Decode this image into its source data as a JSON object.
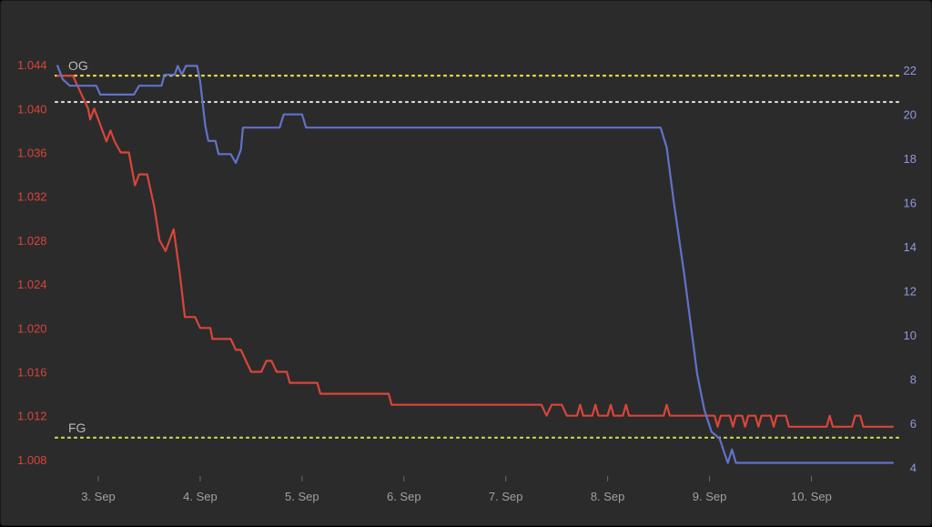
{
  "chart_data": {
    "type": "line",
    "title": "",
    "x_axis": {
      "ticks": [
        "3. Sep",
        "4. Sep",
        "5. Sep",
        "6. Sep",
        "7. Sep",
        "8. Sep",
        "9. Sep",
        "10. Sep"
      ],
      "range_days": [
        2.58,
        10.8
      ]
    },
    "y_left": {
      "ticks": [
        "1.008",
        "1.012",
        "1.016",
        "1.020",
        "1.024",
        "1.028",
        "1.032",
        "1.036",
        "1.040",
        "1.044"
      ],
      "range": [
        1.0065,
        1.0455
      ],
      "color": "#d9453a"
    },
    "y_right": {
      "ticks": [
        "4",
        "6",
        "8",
        "10",
        "12",
        "14",
        "16",
        "18",
        "20",
        "22"
      ],
      "range": [
        3.6,
        23
      ],
      "color": "#6272c9"
    },
    "reference_lines": [
      {
        "label": "OG",
        "value": 1.043,
        "color": "#e8d44d"
      },
      {
        "label": "",
        "value": 1.0406,
        "color": "#d8d8d8"
      },
      {
        "label": "FG",
        "value": 1.01,
        "color": "#c8d94d"
      }
    ],
    "series": [
      {
        "color": "#d9453a",
        "axis": "left",
        "points": [
          [
            2.6,
            1.043
          ],
          [
            2.75,
            1.043
          ],
          [
            2.8,
            1.042
          ],
          [
            2.85,
            1.041
          ],
          [
            2.9,
            1.04
          ],
          [
            2.92,
            1.039
          ],
          [
            2.96,
            1.04
          ],
          [
            3.0,
            1.039
          ],
          [
            3.08,
            1.037
          ],
          [
            3.12,
            1.038
          ],
          [
            3.16,
            1.037
          ],
          [
            3.22,
            1.036
          ],
          [
            3.3,
            1.036
          ],
          [
            3.36,
            1.033
          ],
          [
            3.4,
            1.034
          ],
          [
            3.48,
            1.034
          ],
          [
            3.55,
            1.031
          ],
          [
            3.6,
            1.028
          ],
          [
            3.66,
            1.027
          ],
          [
            3.74,
            1.029
          ],
          [
            3.8,
            1.025
          ],
          [
            3.85,
            1.021
          ],
          [
            3.95,
            1.021
          ],
          [
            4.0,
            1.02
          ],
          [
            4.1,
            1.02
          ],
          [
            4.12,
            1.019
          ],
          [
            4.3,
            1.019
          ],
          [
            4.35,
            1.018
          ],
          [
            4.4,
            1.018
          ],
          [
            4.45,
            1.017
          ],
          [
            4.5,
            1.016
          ],
          [
            4.6,
            1.016
          ],
          [
            4.65,
            1.017
          ],
          [
            4.7,
            1.017
          ],
          [
            4.75,
            1.016
          ],
          [
            4.85,
            1.016
          ],
          [
            4.88,
            1.015
          ],
          [
            5.15,
            1.015
          ],
          [
            5.18,
            1.014
          ],
          [
            5.85,
            1.014
          ],
          [
            5.88,
            1.013
          ],
          [
            7.35,
            1.013
          ],
          [
            7.4,
            1.012
          ],
          [
            7.45,
            1.013
          ],
          [
            7.55,
            1.013
          ],
          [
            7.6,
            1.012
          ],
          [
            7.7,
            1.012
          ],
          [
            7.73,
            1.013
          ],
          [
            7.76,
            1.012
          ],
          [
            7.85,
            1.012
          ],
          [
            7.88,
            1.013
          ],
          [
            7.91,
            1.012
          ],
          [
            8.0,
            1.012
          ],
          [
            8.03,
            1.013
          ],
          [
            8.06,
            1.012
          ],
          [
            8.15,
            1.012
          ],
          [
            8.18,
            1.013
          ],
          [
            8.21,
            1.012
          ],
          [
            8.55,
            1.012
          ],
          [
            8.58,
            1.013
          ],
          [
            8.61,
            1.012
          ],
          [
            8.95,
            1.012
          ],
          [
            9.05,
            1.012
          ],
          [
            9.08,
            1.011
          ],
          [
            9.11,
            1.012
          ],
          [
            9.2,
            1.012
          ],
          [
            9.23,
            1.011
          ],
          [
            9.26,
            1.012
          ],
          [
            9.32,
            1.012
          ],
          [
            9.35,
            1.011
          ],
          [
            9.38,
            1.012
          ],
          [
            9.45,
            1.012
          ],
          [
            9.48,
            1.011
          ],
          [
            9.51,
            1.012
          ],
          [
            9.6,
            1.012
          ],
          [
            9.63,
            1.011
          ],
          [
            9.66,
            1.012
          ],
          [
            9.75,
            1.012
          ],
          [
            9.78,
            1.011
          ],
          [
            10.15,
            1.011
          ],
          [
            10.18,
            1.012
          ],
          [
            10.21,
            1.011
          ],
          [
            10.4,
            1.011
          ],
          [
            10.43,
            1.012
          ],
          [
            10.48,
            1.012
          ],
          [
            10.51,
            1.011
          ],
          [
            10.8,
            1.011
          ]
        ]
      },
      {
        "color": "#6272c9",
        "axis": "right",
        "points": [
          [
            2.6,
            22.2
          ],
          [
            2.65,
            21.6
          ],
          [
            2.72,
            21.3
          ],
          [
            2.98,
            21.3
          ],
          [
            3.02,
            20.9
          ],
          [
            3.35,
            20.9
          ],
          [
            3.4,
            21.3
          ],
          [
            3.62,
            21.3
          ],
          [
            3.65,
            21.8
          ],
          [
            3.75,
            21.8
          ],
          [
            3.78,
            22.2
          ],
          [
            3.82,
            21.8
          ],
          [
            3.86,
            22.2
          ],
          [
            3.97,
            22.2
          ],
          [
            4.0,
            21.5
          ],
          [
            4.05,
            19.5
          ],
          [
            4.08,
            18.8
          ],
          [
            4.15,
            18.8
          ],
          [
            4.18,
            18.2
          ],
          [
            4.3,
            18.2
          ],
          [
            4.35,
            17.8
          ],
          [
            4.4,
            18.4
          ],
          [
            4.42,
            19.4
          ],
          [
            4.78,
            19.4
          ],
          [
            4.82,
            20.0
          ],
          [
            5.0,
            20.0
          ],
          [
            5.04,
            19.4
          ],
          [
            8.52,
            19.4
          ],
          [
            8.58,
            18.5
          ],
          [
            8.65,
            16.0
          ],
          [
            8.75,
            12.8
          ],
          [
            8.88,
            8.2
          ],
          [
            8.95,
            6.6
          ],
          [
            9.02,
            5.6
          ],
          [
            9.1,
            5.3
          ],
          [
            9.15,
            4.6
          ],
          [
            9.18,
            4.2
          ],
          [
            9.22,
            4.8
          ],
          [
            9.26,
            4.2
          ],
          [
            10.8,
            4.2
          ]
        ]
      }
    ]
  }
}
